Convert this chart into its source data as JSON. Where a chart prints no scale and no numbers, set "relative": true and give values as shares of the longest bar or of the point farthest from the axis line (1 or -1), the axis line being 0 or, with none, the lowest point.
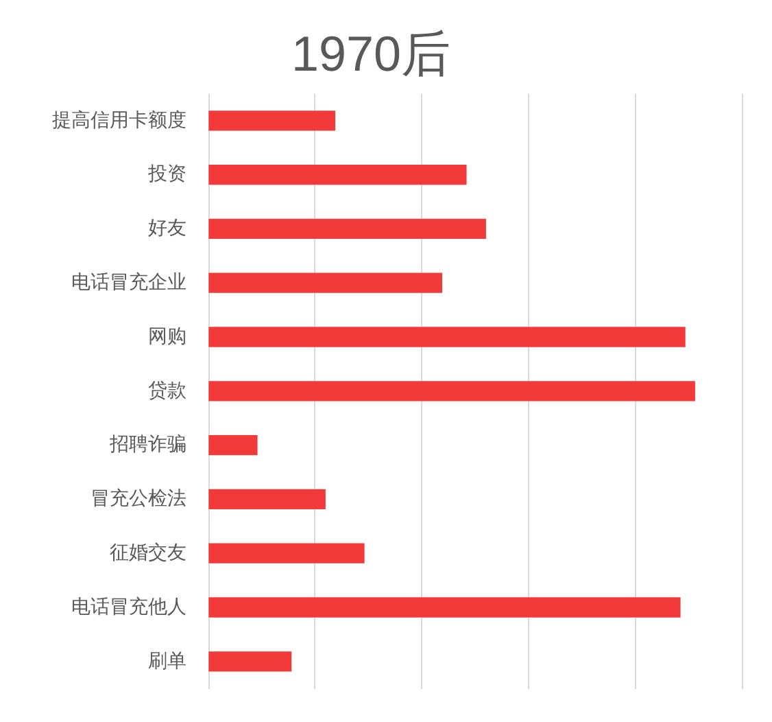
{
  "chart_data": {
    "type": "bar",
    "title": "1970后",
    "orientation": "horizontal",
    "relative": true,
    "grid": "x",
    "categories": [
      "提高信用卡额度",
      "投资",
      "好友",
      "电话冒充企业",
      "网购",
      "贷款",
      "招聘诈骗",
      "冒充公检法",
      "征婚交友",
      "电话冒充他人",
      "刷单"
    ],
    "values": [
      0.26,
      0.53,
      0.57,
      0.48,
      0.98,
      1,
      0.1,
      0.24,
      0.32,
      0.97,
      0.17
    ],
    "color": "#f23a3a"
  }
}
